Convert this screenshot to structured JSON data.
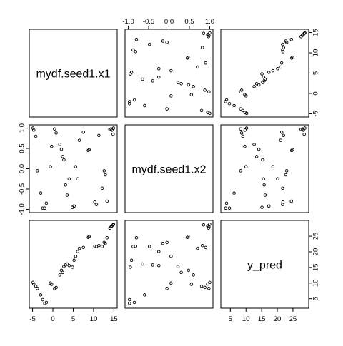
{
  "chart_data": {
    "type": "scatter",
    "kind": "pairs-matrix",
    "variables": [
      "mydf.seed1.x1",
      "mydf.seed1.x2",
      "y_pred"
    ],
    "ranges": {
      "mydf.seed1.x1": [
        -5,
        15
      ],
      "mydf.seed1.x2": [
        -1,
        1
      ],
      "y_pred": [
        3,
        29
      ]
    },
    "ticks": {
      "mydf.seed1.x1": [
        -5,
        0,
        5,
        10,
        15
      ],
      "mydf.seed1.x2": [
        -1.0,
        -0.5,
        0.0,
        0.5,
        1.0
      ],
      "y_pred": [
        5,
        10,
        15,
        20,
        25
      ]
    },
    "tick_labels": {
      "mydf.seed1.x1": [
        "-5",
        "0",
        "5",
        "10",
        "15"
      ],
      "mydf.seed1.x2": [
        "-1.0",
        "-0.5",
        "0.0",
        "0.5",
        "1.0"
      ],
      "y_pred": [
        "5",
        "10",
        "15",
        "20",
        "25"
      ]
    },
    "axis_placement": {
      "top": [
        "mydf.seed1.x2"
      ],
      "bottom": [
        "mydf.seed1.x1",
        "y_pred"
      ],
      "left": [
        "mydf.seed1.x2"
      ],
      "right": [
        "mydf.seed1.x1",
        "y_pred"
      ]
    },
    "points": [
      {
        "x1": -4.9,
        "x2": 1.0,
        "y": 10.2
      },
      {
        "x1": -4.7,
        "x2": 0.95,
        "y": 9.7
      },
      {
        "x1": -4.2,
        "x2": 0.8,
        "y": 9.0
      },
      {
        "x1": -3.8,
        "x2": -0.05,
        "y": 8.3
      },
      {
        "x1": -3.0,
        "x2": -0.6,
        "y": 6.2
      },
      {
        "x1": -2.5,
        "x2": -0.97,
        "y": 4.7
      },
      {
        "x1": -2.0,
        "x2": -0.97,
        "y": 3.5
      },
      {
        "x1": -1.6,
        "x2": -0.85,
        "y": 3.8
      },
      {
        "x1": -0.6,
        "x2": 0.05,
        "y": 10.0
      },
      {
        "x1": -0.3,
        "x2": 0.55,
        "y": 9.6
      },
      {
        "x1": 0.4,
        "x2": 0.98,
        "y": 8.3
      },
      {
        "x1": 0.8,
        "x2": 0.88,
        "y": 8.6
      },
      {
        "x1": 1.7,
        "x2": 0.6,
        "y": 12.6
      },
      {
        "x1": 2.1,
        "x2": 0.48,
        "y": 14.1
      },
      {
        "x1": 2.4,
        "x2": 0.3,
        "y": 13.4
      },
      {
        "x1": 2.7,
        "x2": 0.22,
        "y": 15.3
      },
      {
        "x1": 3.1,
        "x2": -0.4,
        "y": 15.8
      },
      {
        "x1": 3.5,
        "x2": -0.65,
        "y": 16.1
      },
      {
        "x1": 4.0,
        "x2": -0.25,
        "y": 15.6
      },
      {
        "x1": 4.8,
        "x2": -0.95,
        "y": 15.1
      },
      {
        "x1": 5.2,
        "x2": -0.92,
        "y": 17.3
      },
      {
        "x1": 5.6,
        "x2": 0.05,
        "y": 18.6
      },
      {
        "x1": 6.1,
        "x2": -0.25,
        "y": 20.1
      },
      {
        "x1": 6.5,
        "x2": 0.7,
        "y": 21.1
      },
      {
        "x1": 7.5,
        "x2": 0.9,
        "y": 21.4
      },
      {
        "x1": 8.7,
        "x2": 0.45,
        "y": 24.6
      },
      {
        "x1": 8.9,
        "x2": 0.47,
        "y": 24.9
      },
      {
        "x1": 10.3,
        "x2": -0.82,
        "y": 21.8
      },
      {
        "x1": 10.7,
        "x2": -0.88,
        "y": 21.7
      },
      {
        "x1": 11.3,
        "x2": 0.82,
        "y": 22.0
      },
      {
        "x1": 12.1,
        "x2": -0.48,
        "y": 21.7
      },
      {
        "x1": 12.6,
        "x2": -0.05,
        "y": 23.0
      },
      {
        "x1": 12.9,
        "x2": -0.15,
        "y": 22.7
      },
      {
        "x1": 13.3,
        "x2": -0.8,
        "y": 24.5
      },
      {
        "x1": 14.0,
        "x2": 0.97,
        "y": 27.6
      },
      {
        "x1": 14.3,
        "x2": 0.98,
        "y": 28.0
      },
      {
        "x1": 14.5,
        "x2": 0.95,
        "y": 28.3
      },
      {
        "x1": 14.8,
        "x2": 0.85,
        "y": 28.6
      },
      {
        "x1": 14.9,
        "x2": 1.0,
        "y": 28.8
      }
    ]
  }
}
